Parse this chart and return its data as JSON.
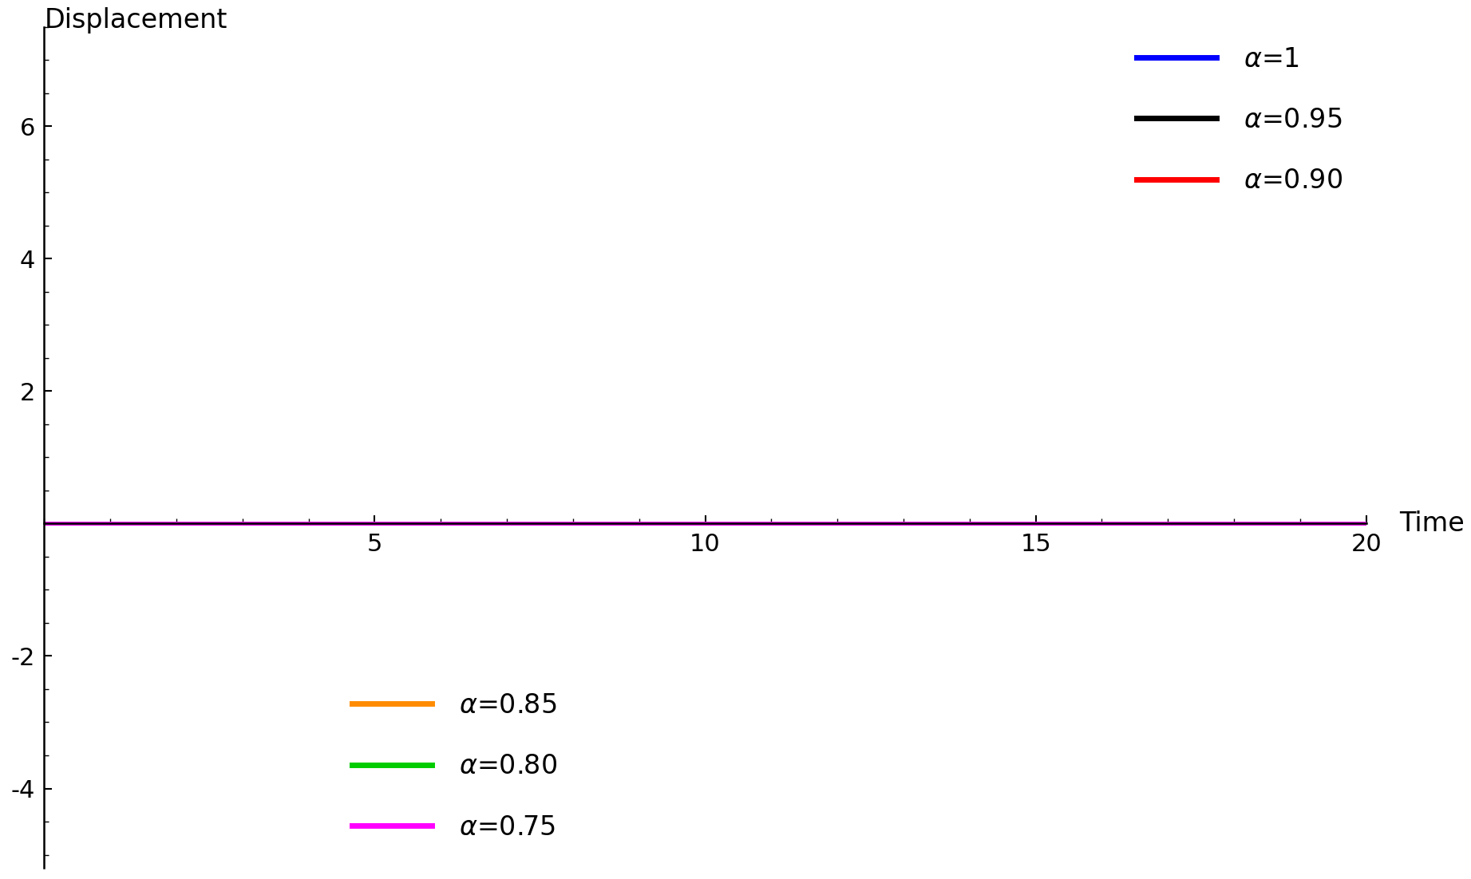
{
  "ylabel": "Displacement",
  "xlabel": "Time",
  "xlim": [
    0,
    20
  ],
  "ylim": [
    -5.2,
    7.5
  ],
  "alphas": [
    1.0,
    0.95,
    0.9,
    0.85,
    0.8,
    0.75
  ],
  "colors": [
    "#0000FF",
    "#000000",
    "#FF0000",
    "#FF8C00",
    "#00CC00",
    "#FF00FF"
  ],
  "linewidth": 3.5,
  "yticks": [
    -4,
    -2,
    0,
    2,
    4,
    6
  ],
  "xticks": [
    5,
    10,
    15,
    20
  ],
  "legend_labels_top": [
    "α=1",
    "α=0.95",
    "α=0.90"
  ],
  "legend_labels_bot": [
    "α=0.85",
    "α=0.80",
    "α=0.75"
  ],
  "background_color": "#FFFFFF",
  "global_scale": 4.85,
  "N_points": 2000,
  "T": 20.0
}
